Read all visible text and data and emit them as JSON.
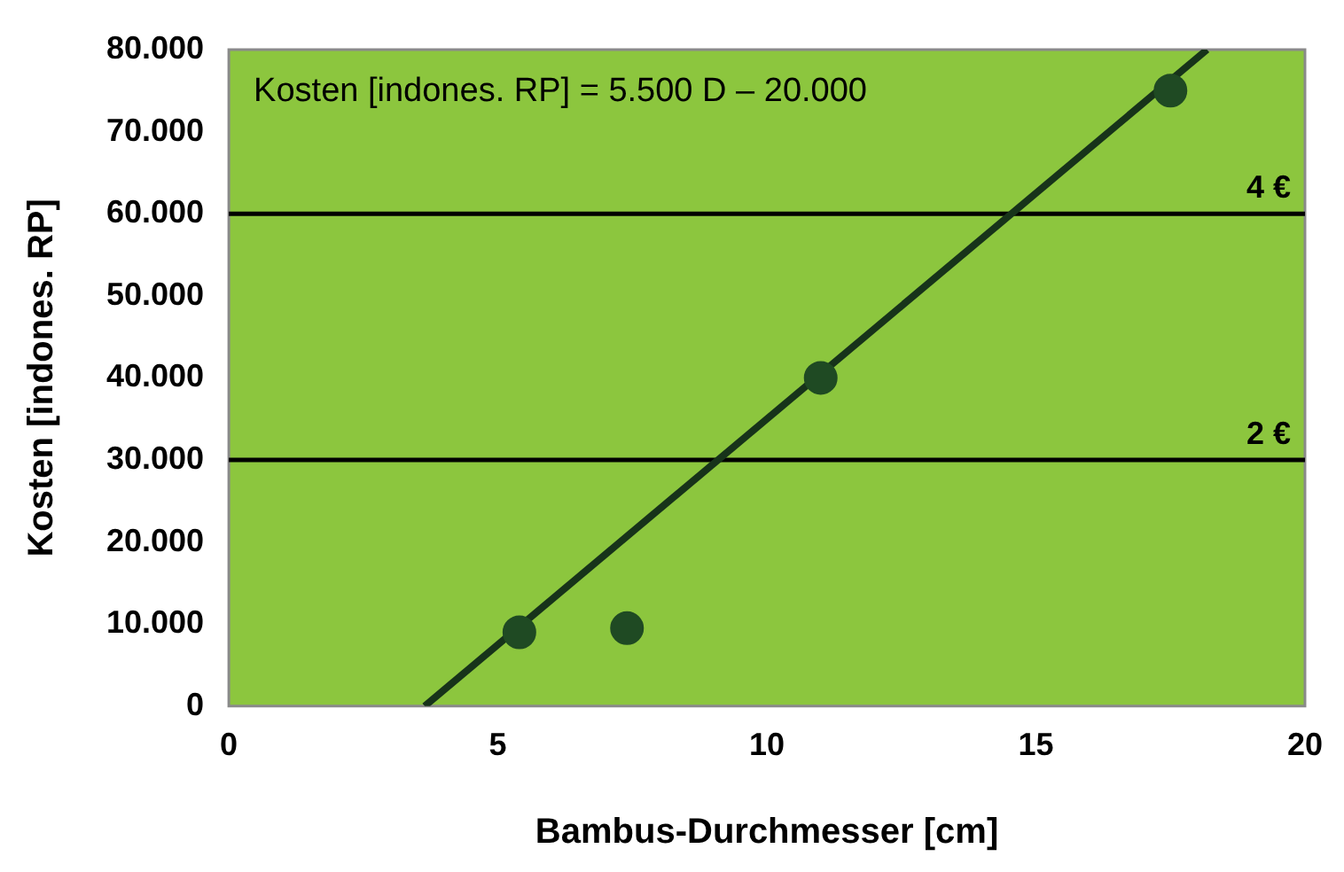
{
  "chart_data": {
    "type": "scatter",
    "xlabel": "Bambus-Durchmesser [cm]",
    "ylabel": "Kosten [indones. RP]",
    "series": [
      {
        "color": "#1f4a23",
        "marker": "circle",
        "x": [
          5.4,
          7.4,
          11,
          17.5
        ],
        "values": [
          9000,
          9500,
          40000,
          75000
        ]
      },
      {
        "type": "line",
        "marker": "none",
        "color": "#17331a",
        "x": [
          3.64,
          18.18
        ],
        "values": [
          0,
          80000
        ]
      }
    ],
    "xlim": [
      0,
      20
    ],
    "xticks": [
      0,
      5,
      10,
      15,
      20
    ],
    "ylim": [
      0,
      80000
    ],
    "yticks": [
      {
        "value": 0,
        "label": "0"
      },
      {
        "value": 10000,
        "label": "10.000"
      },
      {
        "value": 20000,
        "label": "20.000"
      },
      {
        "value": 30000,
        "label": "30.000"
      },
      {
        "value": 40000,
        "label": "40.000"
      },
      {
        "value": 50000,
        "label": "50.000"
      },
      {
        "value": 60000,
        "label": "60.000"
      },
      {
        "value": 70000,
        "label": "70.000"
      },
      {
        "value": 80000,
        "label": "80.000"
      }
    ],
    "ref_lines": [
      {
        "axis": "y",
        "value": 60000,
        "label": "4 €",
        "color": "#000000"
      },
      {
        "axis": "y",
        "value": 30000,
        "label": "2 €",
        "color": "#000000"
      }
    ],
    "annotations": [
      "Kosten [indones. RP] = 5.500 D – 20.000"
    ],
    "grid": false,
    "legend": false
  }
}
